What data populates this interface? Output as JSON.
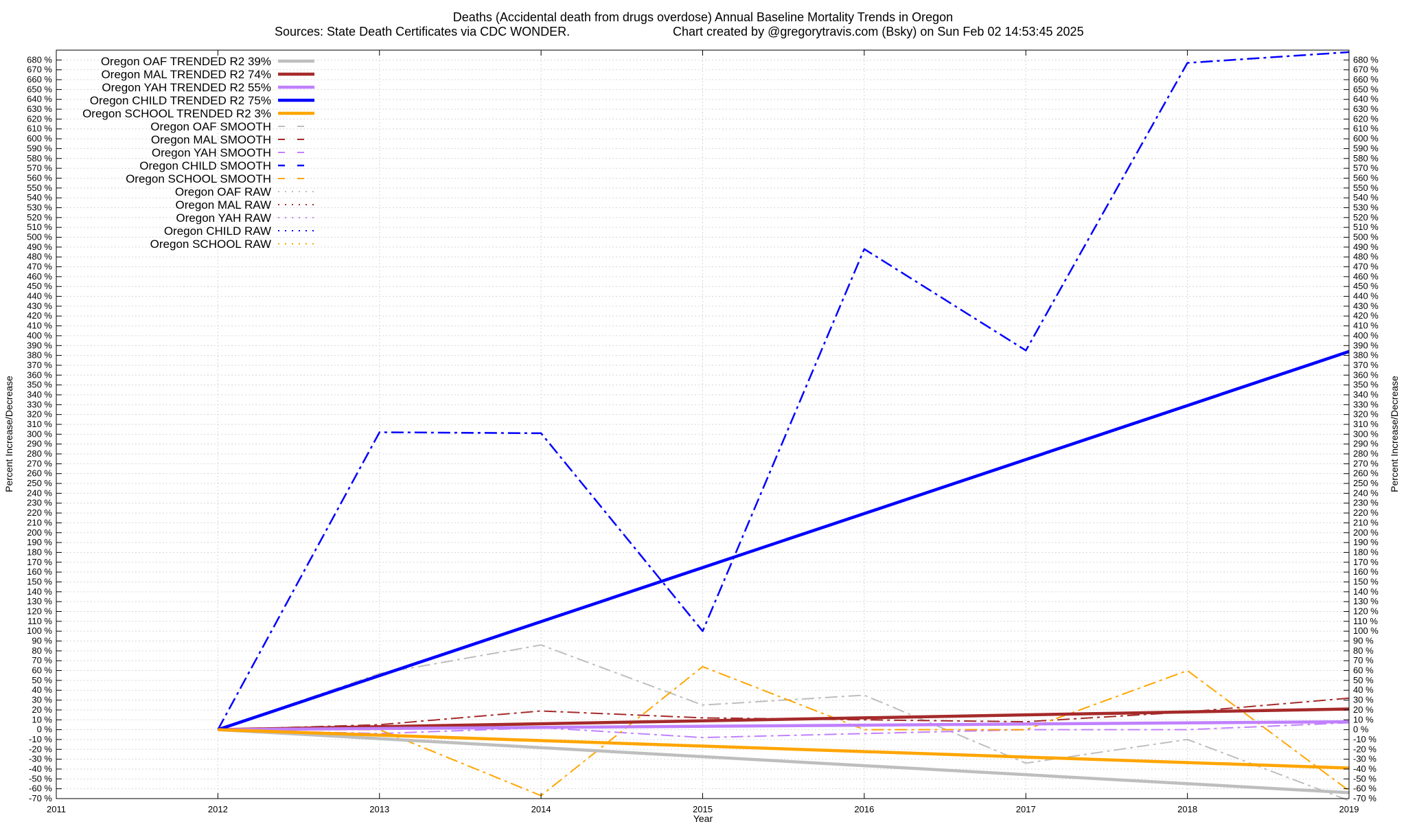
{
  "chart_data": {
    "type": "line",
    "title": "Deaths (Accidental death from drugs overdose)  Annual Baseline Mortality Trends in Oregon",
    "subtitle_left": "Sources: State Death Certificates via CDC WONDER.",
    "subtitle_right": "Chart created by @gregorytravis.com (Bsky) on Sun Feb 02 14:53:45 2025",
    "xlabel": "Year",
    "ylabel": "Percent Increase/Decrease",
    "xlim": [
      2011,
      2019
    ],
    "ylim": [
      -70,
      690
    ],
    "x_ticks": [
      2011,
      2012,
      2013,
      2014,
      2015,
      2016,
      2017,
      2018,
      2019
    ],
    "y_tick_step": 10,
    "y_tick_suffix": " %",
    "grid": true,
    "legend_position": "top-left",
    "series": [
      {
        "name": "Oregon OAF TRENDED R2  39%",
        "style": "solid",
        "color": "#bebebe",
        "width": 4.5,
        "x": [
          2012,
          2019
        ],
        "values": [
          0,
          -64
        ]
      },
      {
        "name": "Oregon MAL TRENDED R2  74%",
        "style": "solid",
        "color": "#a52a2a",
        "width": 4.5,
        "x": [
          2012,
          2019
        ],
        "values": [
          0,
          21
        ]
      },
      {
        "name": "Oregon YAH TRENDED R2  55%",
        "style": "solid",
        "color": "#c080ff",
        "width": 4.5,
        "x": [
          2012,
          2019
        ],
        "values": [
          0,
          8
        ]
      },
      {
        "name": "Oregon CHILD TRENDED R2  75%",
        "style": "solid",
        "color": "#0000ff",
        "width": 4.5,
        "x": [
          2012,
          2019
        ],
        "values": [
          0,
          384
        ]
      },
      {
        "name": "Oregon SCHOOL TRENDED R2   3%",
        "style": "solid",
        "color": "#ffa500",
        "width": 4.5,
        "x": [
          2012,
          2019
        ],
        "values": [
          0,
          -39
        ]
      },
      {
        "name": "Oregon OAF SMOOTH",
        "style": "dashdot",
        "color": "#bebebe",
        "width": 2,
        "x": [
          2012,
          2013,
          2014,
          2015,
          2016,
          2017,
          2018,
          2019
        ],
        "values": [
          0,
          57,
          86,
          25,
          35,
          -34,
          -10,
          -72
        ]
      },
      {
        "name": "Oregon MAL SMOOTH",
        "style": "dashdot",
        "color": "#a52a2a",
        "width": 2,
        "x": [
          2012,
          2013,
          2014,
          2015,
          2016,
          2017,
          2018,
          2019
        ],
        "values": [
          0,
          5,
          19,
          12,
          10,
          8,
          18,
          32
        ]
      },
      {
        "name": "Oregon YAH SMOOTH",
        "style": "dashdot",
        "color": "#c080ff",
        "width": 2,
        "x": [
          2012,
          2013,
          2014,
          2015,
          2016,
          2017,
          2018,
          2019
        ],
        "values": [
          0,
          -4,
          2,
          -8,
          -4,
          0,
          0,
          7
        ]
      },
      {
        "name": "Oregon CHILD SMOOTH",
        "style": "dashdot",
        "color": "#0000ff",
        "width": 2.5,
        "x": [
          2012,
          2013,
          2014,
          2015,
          2016,
          2017,
          2018,
          2019
        ],
        "values": [
          0,
          302,
          301,
          100,
          488,
          385,
          677,
          688
        ]
      },
      {
        "name": "Oregon SCHOOL SMOOTH",
        "style": "dashdot",
        "color": "#ffa500",
        "width": 2,
        "x": [
          2012,
          2013,
          2014,
          2015,
          2016,
          2017,
          2018,
          2019
        ],
        "values": [
          0,
          0,
          -67,
          64,
          0,
          0,
          60,
          -62
        ]
      },
      {
        "name": "Oregon OAF RAW",
        "style": "dotted",
        "color": "#bebebe",
        "width": 2,
        "x": [],
        "values": []
      },
      {
        "name": "Oregon MAL RAW",
        "style": "dotted",
        "color": "#a52a2a",
        "width": 2,
        "x": [],
        "values": []
      },
      {
        "name": "Oregon YAH RAW",
        "style": "dotted",
        "color": "#c080ff",
        "width": 2,
        "x": [],
        "values": []
      },
      {
        "name": "Oregon CHILD RAW",
        "style": "dotted",
        "color": "#0000ff",
        "width": 2,
        "x": [],
        "values": []
      },
      {
        "name": "Oregon SCHOOL RAW",
        "style": "dotted",
        "color": "#ffa500",
        "width": 2,
        "x": [],
        "values": []
      }
    ]
  }
}
